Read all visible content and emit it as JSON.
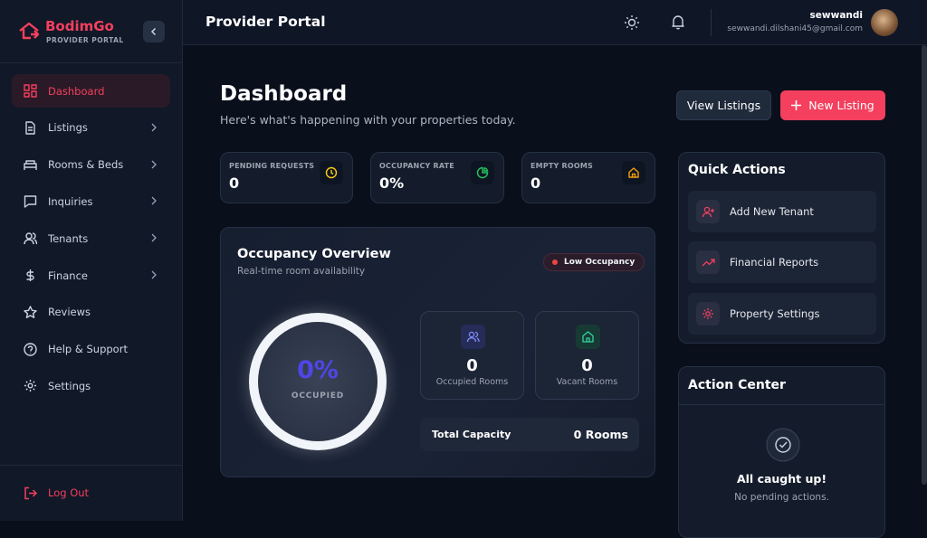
{
  "sidebar": {
    "brand": "BodimGo",
    "brand_subtitle": "PROVIDER PORTAL",
    "nav": [
      "Dashboard",
      "Listings",
      "Rooms & Beds",
      "Inquiries",
      "Tenants",
      "Finance",
      "Reviews",
      "Help & Support",
      "Settings"
    ],
    "logout": "Log Out"
  },
  "header": {
    "title": "Provider Portal",
    "user_name": "sewwandi",
    "user_email": "sewwandi.dilshani45@gmail.com"
  },
  "main": {
    "title": "Dashboard",
    "subtitle": "Here's what's happening with your properties today.",
    "buttons": [
      "View Listings",
      "New Listing"
    ],
    "stats": [
      {
        "label": "PENDING REQUESTS",
        "value": "0"
      },
      {
        "label": "OCCUPANCY RATE",
        "value": "0%"
      },
      {
        "label": "EMPTY ROOMS",
        "value": "0"
      }
    ],
    "overview": {
      "title": "Occupancy Overview",
      "subtitle": "Real-time room availability",
      "badge": "Low Occupancy",
      "donut_value": "0%",
      "donut_label": "OCCUPIED",
      "cards": [
        {
          "value": "0",
          "label": "Occupied Rooms"
        },
        {
          "value": "0",
          "label": "Vacant Rooms"
        }
      ],
      "total_label": "Total Capacity",
      "total_value": "0 Rooms"
    }
  },
  "quick_actions": {
    "title": "Quick Actions",
    "items": [
      "Add New Tenant",
      "Financial Reports",
      "Property Settings"
    ]
  },
  "action_center": {
    "title": "Action Center",
    "heading": "All caught up!",
    "text": "No pending actions."
  }
}
